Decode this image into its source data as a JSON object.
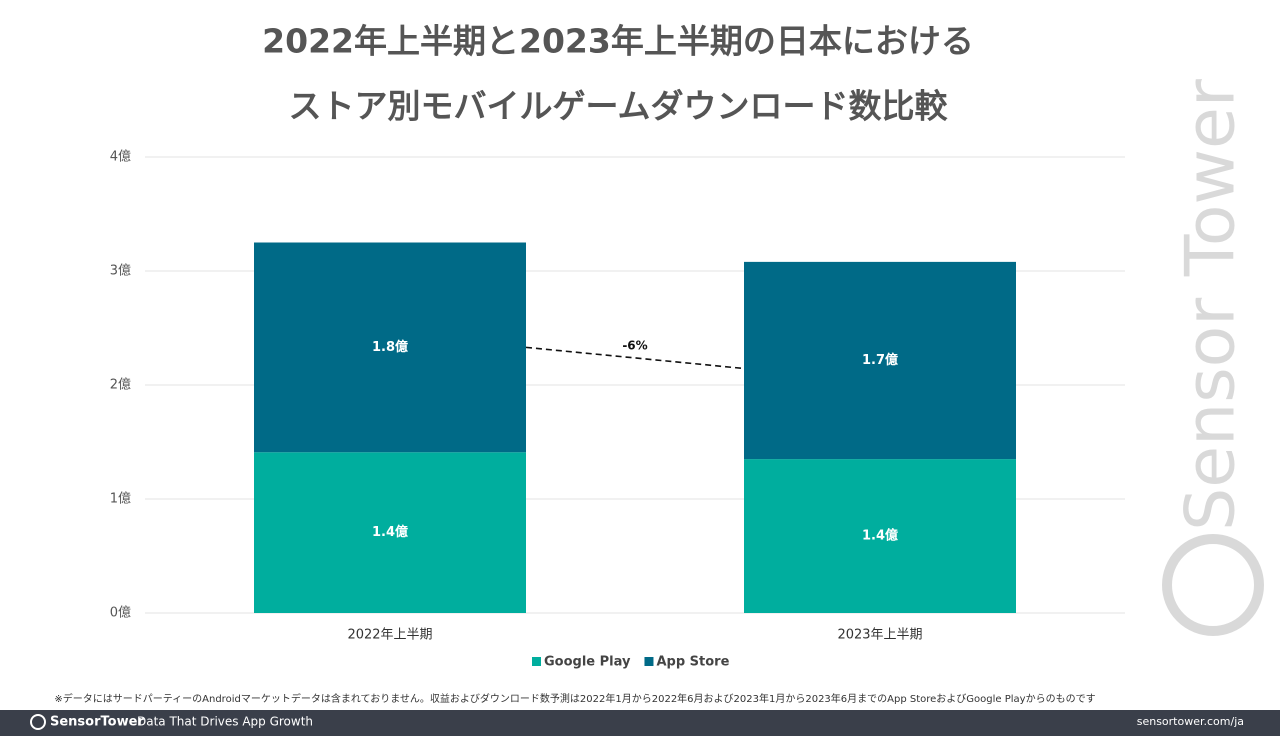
{
  "chart_data": {
    "type": "stacked_bar",
    "title": [
      "2022年上半期と2023年上半期の日本における",
      "ストア別モバイルゲームダウンロード数比較"
    ],
    "categories": [
      "2022年上半期",
      "2023年上半期"
    ],
    "series": [
      {
        "name": "Google Play",
        "color": "#00ae9e",
        "values": [
          1.41,
          1.35
        ],
        "value_labels": [
          "1.4億",
          "1.4億"
        ]
      },
      {
        "name": "App Store",
        "color": "#006a87",
        "values": [
          1.84,
          1.73
        ],
        "value_labels": [
          "1.8億",
          "1.7億"
        ]
      }
    ],
    "ylim": [
      0,
      4
    ],
    "yticks": [
      {
        "value": 0,
        "label": "0億"
      },
      {
        "value": 1,
        "label": "1億"
      },
      {
        "value": 2,
        "label": "2億"
      },
      {
        "value": 3,
        "label": "3億"
      },
      {
        "value": 4,
        "label": "4億"
      }
    ],
    "grid": true,
    "legend": "bottom",
    "annotation": "-6%",
    "note": "※データにはサードパーティーのAndroidマーケットデータは含まれておりません。収益およびダウンロード数予測は2022年1月から2022年6月および2023年1月から2023年6月までのApp StoreおよびGoogle Playからのものです",
    "watermark": "Sensor Tower"
  },
  "footer": {
    "brand": "SensorTower",
    "tagline": "Data That Drives App Growth",
    "url": "sensortower.com/ja"
  }
}
